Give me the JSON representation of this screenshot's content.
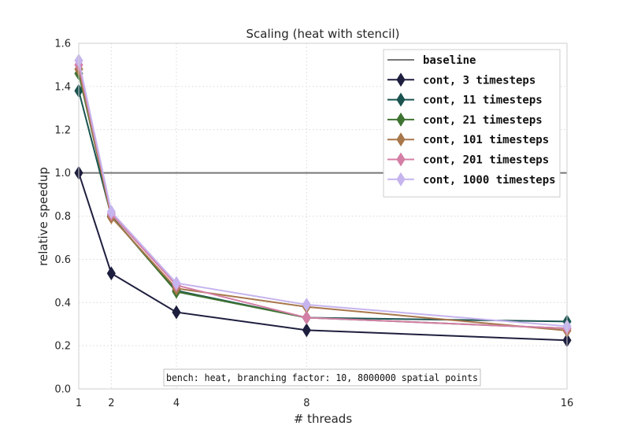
{
  "chart_data": {
    "type": "line",
    "title": "Scaling (heat with stencil)",
    "xlabel": "# threads",
    "ylabel": "relative speedup",
    "x": [
      1,
      2,
      4,
      8,
      16
    ],
    "xlim": [
      1,
      16
    ],
    "ylim": [
      0.0,
      1.6
    ],
    "xticks": [
      "1",
      "2",
      "4",
      "8",
      "16"
    ],
    "yticks": [
      "0.0",
      "0.2",
      "0.4",
      "0.6",
      "0.8",
      "1.0",
      "1.2",
      "1.4",
      "1.6"
    ],
    "grid": true,
    "legend_position": "top-right",
    "annotation": "bench: heat, branching factor: 10, 8000000 spatial points",
    "baseline": {
      "name": "baseline",
      "value": 1.0,
      "color": "#777777"
    },
    "series": [
      {
        "name": "cont, 3 timesteps",
        "color": "#1e1f3e",
        "values": [
          1.0,
          0.535,
          0.355,
          0.272,
          0.225
        ]
      },
      {
        "name": "cont, 11 timesteps",
        "color": "#1a5350",
        "values": [
          1.38,
          0.8,
          0.455,
          0.33,
          0.312
        ]
      },
      {
        "name": "cont, 21 timesteps",
        "color": "#3f7332",
        "values": [
          1.46,
          0.8,
          0.45,
          0.33,
          0.28
        ]
      },
      {
        "name": "cont, 101 timesteps",
        "color": "#a8774b",
        "values": [
          1.48,
          0.795,
          0.465,
          0.38,
          0.27
        ]
      },
      {
        "name": "cont, 201 timesteps",
        "color": "#d47fa6",
        "values": [
          1.5,
          0.81,
          0.48,
          0.33,
          0.28
        ]
      },
      {
        "name": "cont, 1000 timesteps",
        "color": "#c6b4ee",
        "values": [
          1.52,
          0.82,
          0.49,
          0.39,
          0.29
        ]
      }
    ]
  }
}
